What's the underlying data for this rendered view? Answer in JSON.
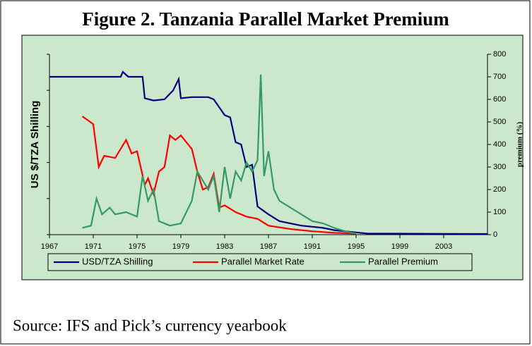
{
  "chart_data": {
    "type": "line",
    "title": "Figure 2. Tanzania Parallel Market Premium",
    "y_label": "US $/TZA Shilling",
    "y2_label": "premium (%)",
    "source": "Source: IFS and Pick’s currency yearbook",
    "xlim": [
      1967,
      2007
    ],
    "xticks": [
      1967,
      1971,
      1975,
      1979,
      1983,
      1987,
      1991,
      1995,
      1999,
      2003
    ],
    "y2lim": [
      0,
      800
    ],
    "y2ticks": [
      0,
      100,
      200,
      300,
      400,
      500,
      600,
      700,
      800
    ],
    "legend": "bottom",
    "series": [
      {
        "name": "USD/TZA Shilling",
        "color": "#000080",
        "axis": "y2",
        "x": [
          1967,
          1973.5,
          1973.7,
          1974.2,
          1975.5,
          1975.7,
          1976.5,
          1977.5,
          1978.3,
          1978.8,
          1979,
          1980,
          1981.5,
          1982,
          1983,
          1983.5,
          1984,
          1984.5,
          1985,
          1985.5,
          1986,
          1987,
          1988,
          1990,
          1992,
          1993,
          1995,
          1996,
          2007
        ],
        "values": [
          700,
          700,
          722,
          700,
          700,
          605,
          595,
          600,
          640,
          690,
          605,
          610,
          610,
          600,
          530,
          520,
          410,
          400,
          300,
          310,
          125,
          90,
          60,
          40,
          30,
          20,
          10,
          5,
          3
        ]
      },
      {
        "name": "Parallel Market Rate",
        "color": "#ff0000",
        "axis": "y2",
        "x": [
          1970,
          1971,
          1971.5,
          1972,
          1973,
          1974,
          1974.5,
          1975,
          1975.7,
          1976,
          1976.5,
          1977,
          1977.5,
          1978,
          1978.5,
          1979,
          1980,
          1980.5,
          1981,
          1981.5,
          1982,
          1982.5,
          1983,
          1984,
          1985,
          1986,
          1987,
          1989,
          1991,
          1993,
          1995
        ],
        "values": [
          525,
          490,
          300,
          350,
          340,
          420,
          360,
          370,
          220,
          250,
          180,
          280,
          300,
          440,
          420,
          440,
          380,
          280,
          200,
          210,
          270,
          120,
          130,
          100,
          80,
          70,
          40,
          25,
          15,
          8,
          5
        ]
      },
      {
        "name": "Parallel Premium",
        "color": "#339966",
        "axis": "y2",
        "x": [
          1970,
          1970.8,
          1971.3,
          1971.8,
          1972.5,
          1973,
          1974,
          1975,
          1975.5,
          1976,
          1976.5,
          1977,
          1978,
          1979,
          1980,
          1980.5,
          1981,
          1981.5,
          1982,
          1982.5,
          1983,
          1983.5,
          1984,
          1984.5,
          1985,
          1985.5,
          1986,
          1986.3,
          1986.6,
          1987,
          1987.5,
          1988,
          1989,
          1990,
          1991,
          1992,
          1993,
          1994,
          1995
        ],
        "values": [
          30,
          40,
          160,
          90,
          120,
          90,
          100,
          80,
          260,
          150,
          200,
          60,
          40,
          50,
          150,
          280,
          240,
          200,
          260,
          100,
          300,
          160,
          280,
          240,
          320,
          280,
          330,
          710,
          260,
          370,
          200,
          150,
          120,
          90,
          60,
          50,
          30,
          15,
          5
        ]
      }
    ]
  }
}
